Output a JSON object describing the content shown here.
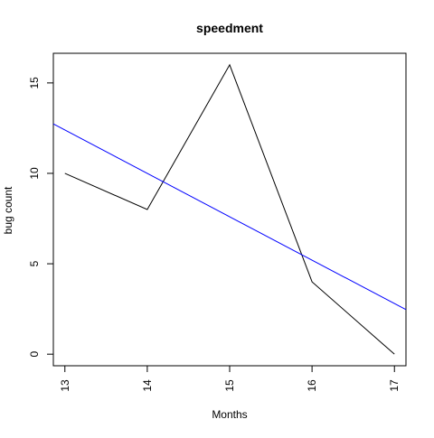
{
  "chart_data": {
    "type": "line",
    "title": "speedment",
    "xlabel": "Months",
    "ylabel": "bug count",
    "x": [
      13,
      14,
      15,
      16,
      17
    ],
    "xlim": [
      12.86,
      17.14
    ],
    "ylim": [
      -0.64,
      16.64
    ],
    "x_ticks": [
      13,
      14,
      15,
      16,
      17
    ],
    "y_ticks": [
      0,
      5,
      10,
      15
    ],
    "grid": false,
    "legend": "none",
    "series": [
      {
        "kind": "line",
        "color": "#000000",
        "values": [
          10,
          8,
          16,
          4,
          0
        ]
      },
      {
        "kind": "trend",
        "color": "#0000ff",
        "values": [
          12.4,
          10.0,
          7.6,
          5.2,
          2.8
        ]
      }
    ]
  }
}
